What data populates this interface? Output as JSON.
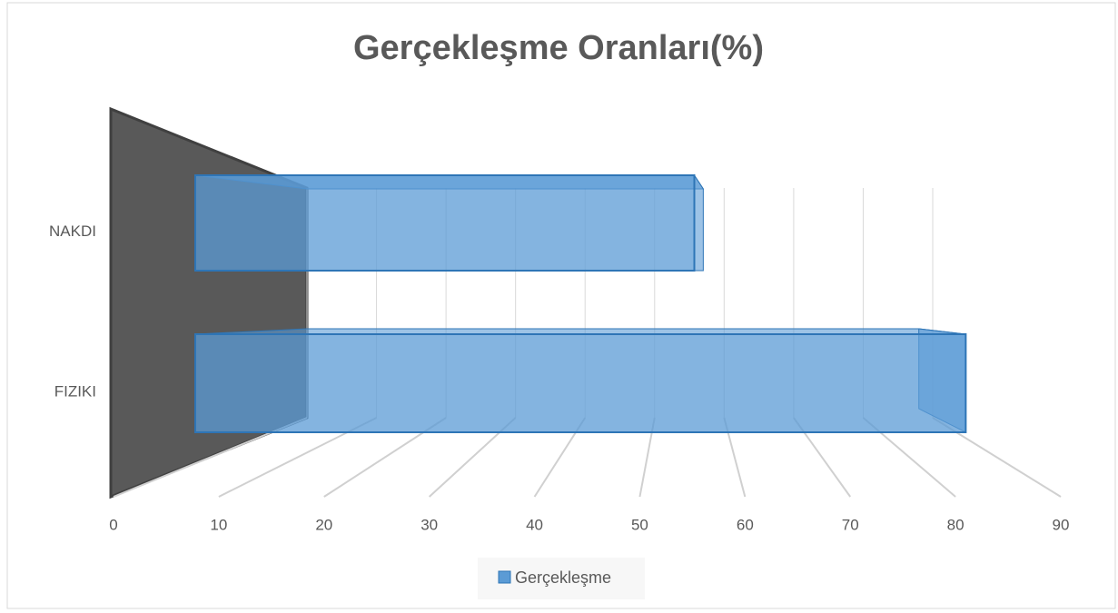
{
  "chart_data": {
    "type": "bar",
    "orientation": "horizontal",
    "title": "Gerçekleşme Oranları(%)",
    "categories": [
      "NAKDI",
      "FIZIKI"
    ],
    "series": [
      {
        "name": "Gerçekleşme",
        "color": "#5b9bd5",
        "values": [
          57,
          88
        ]
      }
    ],
    "xlim": [
      0,
      90
    ],
    "xticks": [
      0,
      10,
      20,
      30,
      40,
      50,
      60,
      70,
      80,
      90
    ],
    "grid": true,
    "legend": "bottom"
  }
}
